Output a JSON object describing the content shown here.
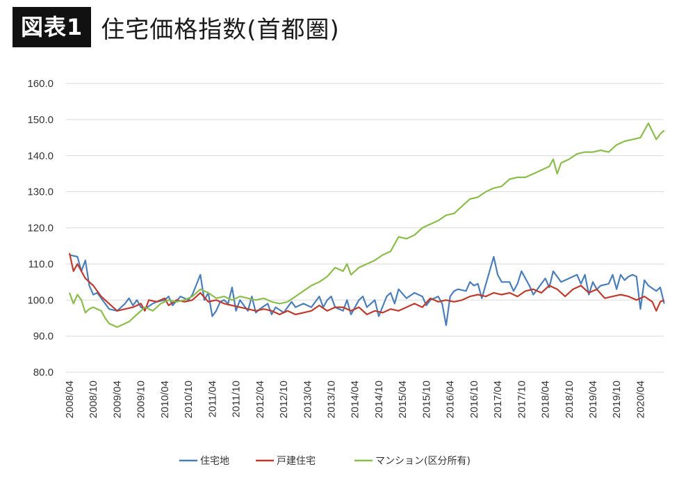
{
  "header": {
    "badge": "図表1",
    "title": "住宅価格指数(首都圏)"
  },
  "colors": {
    "house_land": "#4a7ebb",
    "detached": "#c0392b",
    "condo": "#8bbd4a",
    "grid": "#d9d9d9"
  },
  "chart_data": {
    "type": "line",
    "title": "住宅価格指数(首都圏)",
    "xlabel": "",
    "ylabel": "",
    "ylim": [
      80,
      160
    ],
    "yticks": [
      "160.0",
      "150.0",
      "140.0",
      "130.0",
      "120.0",
      "110.0",
      "100.0",
      "90.0",
      "80.0"
    ],
    "xticks": [
      "2008/04",
      "2008/10",
      "2009/04",
      "2009/10",
      "2010/04",
      "2010/10",
      "2011/04",
      "2011/10",
      "2012/04",
      "2012/10",
      "2013/04",
      "2013/10",
      "2014/04",
      "2014/10",
      "2015/04",
      "2015/10",
      "2016/04",
      "2016/10",
      "2017/04",
      "2017/10",
      "2018/04",
      "2018/10",
      "2019/04",
      "2019/10",
      "2020/04"
    ],
    "x_start": "2008/04",
    "x_end": "2020/09",
    "grid": true,
    "legend_position": "bottom",
    "series": [
      {
        "name": "住宅地",
        "color": "#4a7ebb",
        "points": [
          [
            "2008/04",
            112.5
          ],
          [
            "2008/06",
            112
          ],
          [
            "2008/07",
            108
          ],
          [
            "2008/08",
            111
          ],
          [
            "2008/09",
            104
          ],
          [
            "2008/10",
            101.5
          ],
          [
            "2008/11",
            102
          ],
          [
            "2009/01",
            99
          ],
          [
            "2009/02",
            97.5
          ],
          [
            "2009/04",
            97
          ],
          [
            "2009/06",
            99
          ],
          [
            "2009/07",
            100.5
          ],
          [
            "2009/08",
            98.5
          ],
          [
            "2009/09",
            100
          ],
          [
            "2009/10",
            98
          ],
          [
            "2009/11",
            97.5
          ],
          [
            "2010/01",
            99
          ],
          [
            "2010/02",
            99.5
          ],
          [
            "2010/04",
            100
          ],
          [
            "2010/05",
            101
          ],
          [
            "2010/06",
            98.5
          ],
          [
            "2010/08",
            101
          ],
          [
            "2010/10",
            100
          ],
          [
            "2010/11",
            101.5
          ],
          [
            "2011/01",
            107
          ],
          [
            "2011/02",
            100
          ],
          [
            "2011/03",
            102
          ],
          [
            "2011/04",
            95.5
          ],
          [
            "2011/05",
            97
          ],
          [
            "2011/06",
            99.5
          ],
          [
            "2011/07",
            100
          ],
          [
            "2011/08",
            99
          ],
          [
            "2011/09",
            103.5
          ],
          [
            "2011/10",
            97
          ],
          [
            "2011/11",
            100
          ],
          [
            "2012/01",
            97
          ],
          [
            "2012/02",
            101
          ],
          [
            "2012/03",
            96.5
          ],
          [
            "2012/04",
            97.5
          ],
          [
            "2012/06",
            99
          ],
          [
            "2012/07",
            96
          ],
          [
            "2012/08",
            98
          ],
          [
            "2012/10",
            96.5
          ],
          [
            "2012/12",
            99.5
          ],
          [
            "2013/01",
            98
          ],
          [
            "2013/03",
            99
          ],
          [
            "2013/05",
            98
          ],
          [
            "2013/07",
            101
          ],
          [
            "2013/08",
            98
          ],
          [
            "2013/09",
            100
          ],
          [
            "2013/10",
            101
          ],
          [
            "2013/11",
            98
          ],
          [
            "2014/01",
            97
          ],
          [
            "2014/02",
            100
          ],
          [
            "2014/03",
            96
          ],
          [
            "2014/05",
            100
          ],
          [
            "2014/06",
            101
          ],
          [
            "2014/07",
            98
          ],
          [
            "2014/09",
            100
          ],
          [
            "2014/10",
            95.5
          ],
          [
            "2014/12",
            101
          ],
          [
            "2015/01",
            102
          ],
          [
            "2015/02",
            99
          ],
          [
            "2015/03",
            103
          ],
          [
            "2015/05",
            100.5
          ],
          [
            "2015/07",
            102
          ],
          [
            "2015/09",
            101
          ],
          [
            "2015/10",
            98.5
          ],
          [
            "2015/11",
            100
          ],
          [
            "2016/01",
            101
          ],
          [
            "2016/02",
            99
          ],
          [
            "2016/03",
            93
          ],
          [
            "2016/04",
            101
          ],
          [
            "2016/05",
            102.5
          ],
          [
            "2016/06",
            103
          ],
          [
            "2016/08",
            102.5
          ],
          [
            "2016/09",
            105
          ],
          [
            "2016/10",
            104
          ],
          [
            "2016/11",
            104.5
          ],
          [
            "2016/12",
            100.5
          ],
          [
            "2017/03",
            112
          ],
          [
            "2017/04",
            107
          ],
          [
            "2017/05",
            105
          ],
          [
            "2017/07",
            105
          ],
          [
            "2017/08",
            102.5
          ],
          [
            "2017/09",
            104.5
          ],
          [
            "2017/10",
            108
          ],
          [
            "2017/12",
            104
          ],
          [
            "2018/01",
            101.5
          ],
          [
            "2018/02",
            103
          ],
          [
            "2018/04",
            106
          ],
          [
            "2018/05",
            103.5
          ],
          [
            "2018/06",
            108
          ],
          [
            "2018/08",
            105
          ],
          [
            "2018/10",
            106
          ],
          [
            "2018/12",
            107
          ],
          [
            "2019/01",
            104.5
          ],
          [
            "2019/02",
            107
          ],
          [
            "2019/03",
            101.5
          ],
          [
            "2019/04",
            105
          ],
          [
            "2019/05",
            103
          ],
          [
            "2019/06",
            104
          ],
          [
            "2019/08",
            104.5
          ],
          [
            "2019/09",
            107
          ],
          [
            "2019/10",
            103
          ],
          [
            "2019/11",
            107
          ],
          [
            "2019/12",
            105.5
          ],
          [
            "2020/01",
            106.5
          ],
          [
            "2020/02",
            107
          ],
          [
            "2020/03",
            106.5
          ],
          [
            "2020/04",
            97.5
          ],
          [
            "2020/05",
            105.5
          ],
          [
            "2020/06",
            104
          ],
          [
            "2020/08",
            102.5
          ],
          [
            "2020/09",
            103.5
          ],
          [
            "2020/10",
            99
          ]
        ]
      },
      {
        "name": "戸建住宅",
        "color": "#c0392b",
        "points": [
          [
            "2008/04",
            113
          ],
          [
            "2008/05",
            108
          ],
          [
            "2008/06",
            110
          ],
          [
            "2008/08",
            106
          ],
          [
            "2008/10",
            104
          ],
          [
            "2008/12",
            101
          ],
          [
            "2009/02",
            99
          ],
          [
            "2009/04",
            97
          ],
          [
            "2009/06",
            97.5
          ],
          [
            "2009/08",
            98
          ],
          [
            "2009/10",
            99
          ],
          [
            "2009/11",
            97
          ],
          [
            "2009/12",
            100
          ],
          [
            "2010/02",
            99.5
          ],
          [
            "2010/04",
            100.5
          ],
          [
            "2010/05",
            98.5
          ],
          [
            "2010/07",
            100
          ],
          [
            "2010/09",
            99.5
          ],
          [
            "2010/11",
            100
          ],
          [
            "2011/01",
            102
          ],
          [
            "2011/03",
            99.5
          ],
          [
            "2011/05",
            100
          ],
          [
            "2011/07",
            99
          ],
          [
            "2011/09",
            98.5
          ],
          [
            "2011/11",
            98
          ],
          [
            "2012/01",
            97.5
          ],
          [
            "2012/03",
            97
          ],
          [
            "2012/05",
            97.5
          ],
          [
            "2012/07",
            97
          ],
          [
            "2012/09",
            96
          ],
          [
            "2012/11",
            97
          ],
          [
            "2013/01",
            96
          ],
          [
            "2013/03",
            96.5
          ],
          [
            "2013/05",
            97
          ],
          [
            "2013/07",
            98.5
          ],
          [
            "2013/09",
            97
          ],
          [
            "2013/11",
            98
          ],
          [
            "2014/01",
            98
          ],
          [
            "2014/03",
            97
          ],
          [
            "2014/05",
            98
          ],
          [
            "2014/07",
            96
          ],
          [
            "2014/09",
            97
          ],
          [
            "2014/11",
            96.5
          ],
          [
            "2015/01",
            97.5
          ],
          [
            "2015/03",
            97
          ],
          [
            "2015/05",
            98
          ],
          [
            "2015/07",
            99
          ],
          [
            "2015/09",
            98
          ],
          [
            "2015/11",
            100.5
          ],
          [
            "2016/01",
            99.5
          ],
          [
            "2016/03",
            100
          ],
          [
            "2016/05",
            99.5
          ],
          [
            "2016/07",
            100
          ],
          [
            "2016/09",
            101
          ],
          [
            "2016/11",
            101.5
          ],
          [
            "2017/01",
            101
          ],
          [
            "2017/03",
            102
          ],
          [
            "2017/05",
            101.5
          ],
          [
            "2017/07",
            102
          ],
          [
            "2017/09",
            101
          ],
          [
            "2017/11",
            102.5
          ],
          [
            "2018/01",
            103
          ],
          [
            "2018/03",
            102
          ],
          [
            "2018/05",
            104
          ],
          [
            "2018/07",
            103
          ],
          [
            "2018/09",
            101
          ],
          [
            "2018/11",
            103
          ],
          [
            "2019/01",
            104
          ],
          [
            "2019/03",
            102
          ],
          [
            "2019/05",
            103
          ],
          [
            "2019/07",
            100.5
          ],
          [
            "2019/09",
            101
          ],
          [
            "2019/11",
            101.5
          ],
          [
            "2020/01",
            101
          ],
          [
            "2020/03",
            100
          ],
          [
            "2020/05",
            101
          ],
          [
            "2020/07",
            99.5
          ],
          [
            "2020/08",
            97
          ],
          [
            "2020/09",
            99.5
          ],
          [
            "2020/10",
            100
          ]
        ]
      },
      {
        "name": "マンション(区分所有)",
        "color": "#8bbd4a",
        "points": [
          [
            "2008/04",
            102
          ],
          [
            "2008/05",
            99
          ],
          [
            "2008/06",
            101.5
          ],
          [
            "2008/07",
            100
          ],
          [
            "2008/08",
            96.5
          ],
          [
            "2008/09",
            97.5
          ],
          [
            "2008/10",
            98
          ],
          [
            "2008/11",
            97.5
          ],
          [
            "2008/12",
            97
          ],
          [
            "2009/01",
            95
          ],
          [
            "2009/02",
            93.5
          ],
          [
            "2009/03",
            93
          ],
          [
            "2009/04",
            92.5
          ],
          [
            "2009/05",
            93
          ],
          [
            "2009/06",
            93.5
          ],
          [
            "2009/07",
            94
          ],
          [
            "2009/08",
            95
          ],
          [
            "2009/09",
            96
          ],
          [
            "2009/10",
            97
          ],
          [
            "2009/11",
            98
          ],
          [
            "2010/01",
            97
          ],
          [
            "2010/03",
            99
          ],
          [
            "2010/05",
            100
          ],
          [
            "2010/07",
            99.5
          ],
          [
            "2010/09",
            100
          ],
          [
            "2010/11",
            101
          ],
          [
            "2011/01",
            103
          ],
          [
            "2011/03",
            102
          ],
          [
            "2011/05",
            100.5
          ],
          [
            "2011/07",
            101
          ],
          [
            "2011/09",
            100
          ],
          [
            "2011/11",
            101
          ],
          [
            "2012/01",
            100.5
          ],
          [
            "2012/03",
            100
          ],
          [
            "2012/05",
            100.5
          ],
          [
            "2012/07",
            99.5
          ],
          [
            "2012/09",
            99
          ],
          [
            "2012/11",
            99.5
          ],
          [
            "2013/01",
            101
          ],
          [
            "2013/03",
            102.5
          ],
          [
            "2013/05",
            104
          ],
          [
            "2013/07",
            105
          ],
          [
            "2013/09",
            106.5
          ],
          [
            "2013/11",
            109
          ],
          [
            "2014/01",
            108
          ],
          [
            "2014/02",
            110
          ],
          [
            "2014/03",
            107
          ],
          [
            "2014/05",
            109
          ],
          [
            "2014/07",
            110
          ],
          [
            "2014/09",
            111
          ],
          [
            "2014/11",
            112.5
          ],
          [
            "2015/01",
            113.5
          ],
          [
            "2015/03",
            117.5
          ],
          [
            "2015/05",
            117
          ],
          [
            "2015/07",
            118
          ],
          [
            "2015/09",
            120
          ],
          [
            "2015/11",
            121
          ],
          [
            "2016/01",
            122
          ],
          [
            "2016/03",
            123.5
          ],
          [
            "2016/05",
            124
          ],
          [
            "2016/07",
            126
          ],
          [
            "2016/09",
            128
          ],
          [
            "2016/11",
            128.5
          ],
          [
            "2017/01",
            130
          ],
          [
            "2017/03",
            131
          ],
          [
            "2017/05",
            131.5
          ],
          [
            "2017/07",
            133.5
          ],
          [
            "2017/09",
            134
          ],
          [
            "2017/11",
            134
          ],
          [
            "2018/01",
            135
          ],
          [
            "2018/03",
            136
          ],
          [
            "2018/05",
            137
          ],
          [
            "2018/06",
            139
          ],
          [
            "2018/07",
            135
          ],
          [
            "2018/08",
            138
          ],
          [
            "2018/10",
            139
          ],
          [
            "2018/12",
            140.5
          ],
          [
            "2019/02",
            141
          ],
          [
            "2019/04",
            141
          ],
          [
            "2019/06",
            141.5
          ],
          [
            "2019/08",
            141
          ],
          [
            "2019/10",
            143
          ],
          [
            "2019/12",
            144
          ],
          [
            "2020/02",
            144.5
          ],
          [
            "2020/04",
            145
          ],
          [
            "2020/06",
            149
          ],
          [
            "2020/08",
            144.5
          ],
          [
            "2020/09",
            146
          ],
          [
            "2020/10",
            147
          ]
        ]
      }
    ]
  }
}
